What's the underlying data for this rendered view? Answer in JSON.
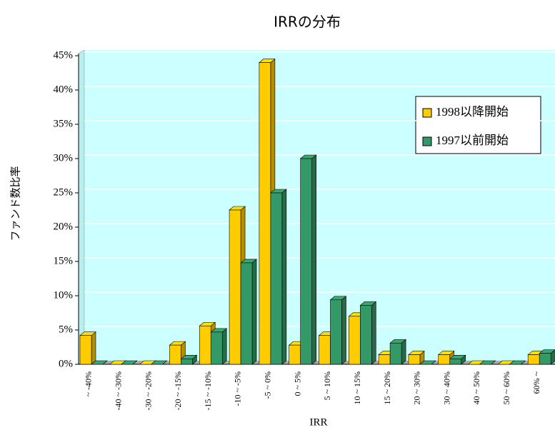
{
  "chart_data": {
    "type": "bar3d",
    "title": "IRRの分布",
    "xlabel": "IRR",
    "ylabel": "ファンド数比率",
    "categories": [
      "~ -40%",
      "-40 ~ -30%",
      "-30 ~ -20%",
      "-20 ~ -15%",
      "-15 ~ -10%",
      "-10 ~ -5%",
      "-5 ~ 0%",
      "0 ~ 5%",
      "5 ~ 10%",
      "10 ~ 15%",
      "15 ~ 20%",
      "20 ~ 30%",
      "30 ~ 40%",
      "40 ~ 50%",
      "50 ~ 60%",
      "60% ~"
    ],
    "series": [
      {
        "name": "1998以降開始",
        "color": "#ffcc00",
        "values": [
          4.2,
          0,
          0,
          2.8,
          5.6,
          22.5,
          44,
          2.8,
          4.2,
          7,
          1.4,
          1.4,
          1.4,
          0,
          0,
          1.4
        ]
      },
      {
        "name": "1997以前開始",
        "color": "#339966",
        "values": [
          0,
          0,
          0,
          0.8,
          4.7,
          14.8,
          25,
          30,
          9.4,
          8.6,
          3.1,
          0,
          0.8,
          0,
          0,
          1.6
        ]
      }
    ],
    "ylim": [
      0,
      45
    ],
    "yticks": [
      {
        "value": 0,
        "label": "0%"
      },
      {
        "value": 5,
        "label": "5%"
      },
      {
        "value": 10,
        "label": "10%"
      },
      {
        "value": 15,
        "label": "15%"
      },
      {
        "value": 20,
        "label": "20%"
      },
      {
        "value": 25,
        "label": "25%"
      },
      {
        "value": 30,
        "label": "30%"
      },
      {
        "value": 35,
        "label": "35%"
      },
      {
        "value": 40,
        "label": "40%"
      },
      {
        "value": 45,
        "label": "45%"
      }
    ],
    "grid": true,
    "legend": "upper right"
  }
}
